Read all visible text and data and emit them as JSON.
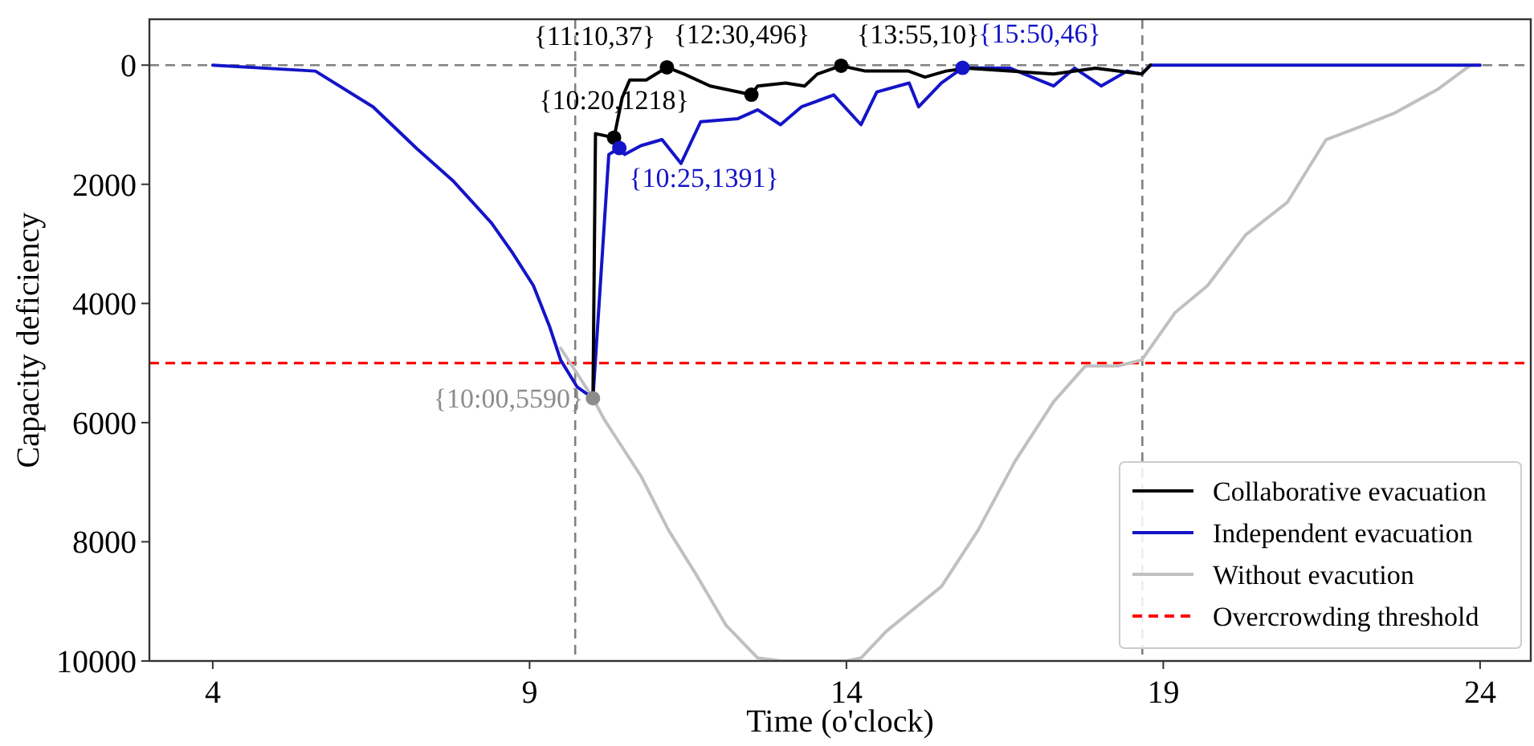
{
  "chart_data": {
    "type": "line",
    "xlabel": "Time (o'clock)",
    "ylabel": "Capacity deficiency",
    "xlim": [
      3,
      24.8
    ],
    "ylim": [
      10000,
      -770
    ],
    "xticks": [
      4,
      9,
      14,
      19,
      24
    ],
    "yticks": [
      0,
      2000,
      4000,
      6000,
      8000,
      10000
    ],
    "grid": false,
    "legend": "bottom right",
    "line_style": "solid",
    "series": [
      {
        "name": "Collaborative evacuation",
        "color": "#000000",
        "x": [
          10,
          10.04,
          10.333,
          10.46,
          10.58,
          10.84,
          11.167,
          11.44,
          11.85,
          12.5,
          12.6,
          13.04,
          13.34,
          13.54,
          13.917,
          14.3,
          14.98,
          15.24,
          15.57,
          15.9,
          17.27,
          17.93,
          18.66,
          18.8
        ],
        "values": [
          5590,
          1150,
          1218,
          550,
          250,
          250,
          37,
          150,
          350,
          496,
          350,
          300,
          350,
          150,
          10,
          100,
          100,
          200,
          100,
          50,
          150,
          50,
          150,
          0
        ]
      },
      {
        "name": "Independent evacuation",
        "color": "#1414c8",
        "x": [
          4,
          5.62,
          6.53,
          7.22,
          7.8,
          8.4,
          8.73,
          9.06,
          9.32,
          9.49,
          9.75,
          10,
          10.25,
          10.417,
          10.5,
          10.76,
          11.09,
          11.39,
          11.7,
          12.28,
          12.6,
          12.96,
          13.29,
          13.8,
          14.23,
          14.48,
          14.99,
          15.14,
          15.5,
          15.833,
          16.58,
          17.27,
          17.6,
          18.02,
          18.43,
          18.66,
          18.8,
          24
        ],
        "values": [
          0,
          100,
          700,
          1400,
          1950,
          2650,
          3150,
          3700,
          4400,
          4950,
          5400,
          5590,
          1500,
          1391,
          1500,
          1350,
          1250,
          1650,
          950,
          900,
          750,
          1000,
          700,
          500,
          1000,
          450,
          300,
          700,
          300,
          46,
          50,
          350,
          50,
          350,
          100,
          150,
          0,
          0
        ]
      },
      {
        "name": "Without evacution",
        "color": "#c0c0c0",
        "x": [
          9.49,
          10,
          10.18,
          10.76,
          11.19,
          11.6,
          12.1,
          12.6,
          12.97,
          14.0,
          14.23,
          14.63,
          15.5,
          16.08,
          16.66,
          17.27,
          17.77,
          18.28,
          18.66,
          19.19,
          19.7,
          20.3,
          20.96,
          21.57,
          22.07,
          22.66,
          23.34,
          23.85,
          24
        ],
        "values": [
          4750,
          5590,
          5950,
          6900,
          7800,
          8500,
          9400,
          9950,
          10000,
          10000,
          9950,
          9500,
          8750,
          7800,
          6650,
          5650,
          5050,
          5050,
          4950,
          4150,
          3700,
          2850,
          2300,
          1250,
          1050,
          800,
          400,
          0,
          0
        ]
      },
      {
        "type": "scatter",
        "marker": "circle",
        "color": "#000000",
        "x": [
          10.333,
          11.167,
          12.5,
          13.917
        ],
        "values": [
          1218,
          37,
          496,
          10
        ]
      },
      {
        "type": "scatter",
        "marker": "circle",
        "color": "#1414c8",
        "x": [
          10.417,
          15.833
        ],
        "values": [
          1391,
          46
        ]
      },
      {
        "type": "scatter",
        "marker": "circle",
        "color": "#8c8c8c",
        "x": [
          10
        ],
        "values": [
          5590
        ]
      }
    ],
    "ref_lines": [
      {
        "axis": "y",
        "value": 0,
        "color": "#808080",
        "line_style": "dashed"
      },
      {
        "axis": "y",
        "value": 5000,
        "label": "Overcrowding threshold",
        "color": "#ff0000",
        "line_style": "dashed"
      },
      {
        "axis": "x",
        "value": 9.72,
        "color": "#808080",
        "line_style": "dashed"
      },
      {
        "axis": "x",
        "value": 18.67,
        "color": "#808080",
        "line_style": "dashed"
      }
    ],
    "annotations": [
      {
        "text": "{10:00,5590}",
        "x": 10,
        "y": 5590
      },
      {
        "text": "{10:20,1218}",
        "x": 10.333,
        "y": 1218
      },
      {
        "text": "{10:25,1391}",
        "x": 10.417,
        "y": 1391
      },
      {
        "text": "{11:10,37}",
        "x": 11.167,
        "y": 37
      },
      {
        "text": "{12:30,496}",
        "x": 12.5,
        "y": 496
      },
      {
        "text": "{13:55,10}",
        "x": 13.917,
        "y": 10
      },
      {
        "text": "{15:50,46}",
        "x": 15.833,
        "y": 46
      }
    ]
  }
}
